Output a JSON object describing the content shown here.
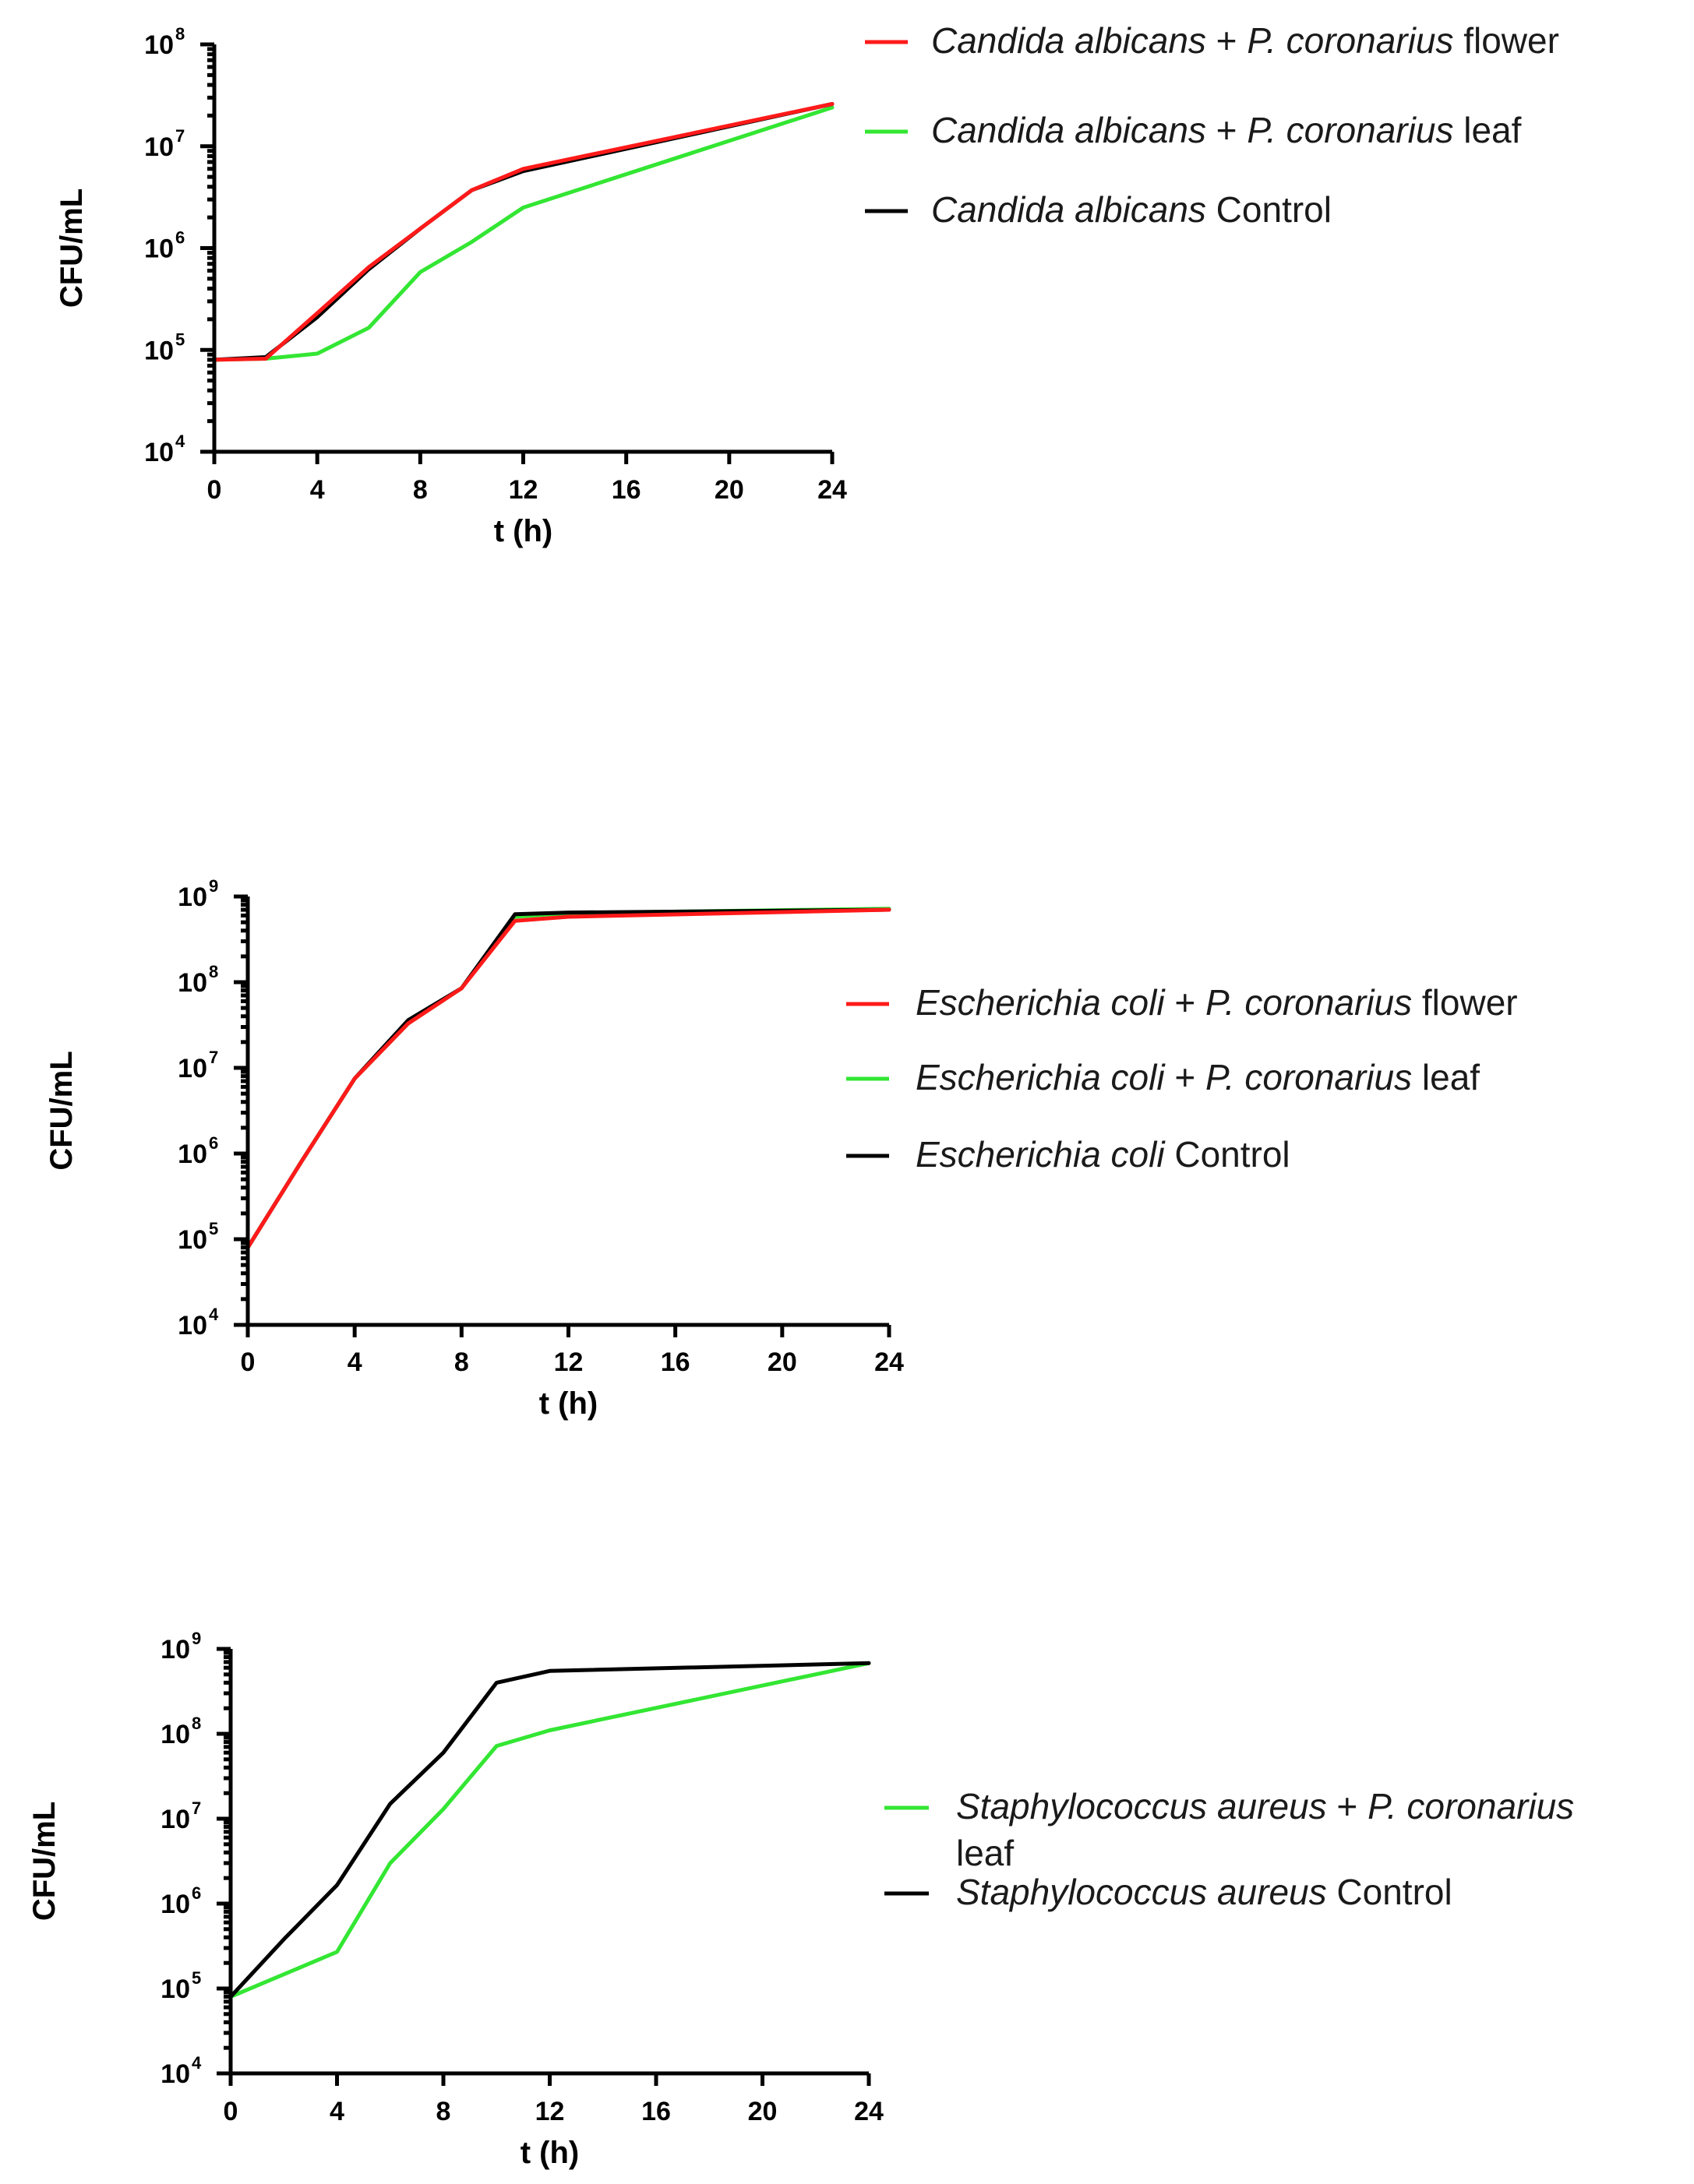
{
  "colors": {
    "flower": "#ff1a1a",
    "leaf": "#33e633",
    "control": "#000000"
  },
  "chart_data": [
    {
      "type": "line",
      "name": "candida",
      "xlabel": "t (h)",
      "ylabel": "CFU/mL",
      "xlim": [
        0,
        24
      ],
      "ylim": [
        10000,
        100000000
      ],
      "yscale": "log",
      "xticks": [
        "0",
        "4",
        "8",
        "12",
        "16",
        "20",
        "24"
      ],
      "yticks": [
        {
          "base": "10",
          "exp": "4"
        },
        {
          "base": "10",
          "exp": "5"
        },
        {
          "base": "10",
          "exp": "6"
        },
        {
          "base": "10",
          "exp": "7"
        },
        {
          "base": "10",
          "exp": "8"
        }
      ],
      "series": [
        {
          "name": "flower",
          "color_key": "flower",
          "legend": [
            {
              "text": "Candida albicans",
              "italic": true
            },
            {
              "text": " + ",
              "italic": false
            },
            {
              "text": "P. coronarius",
              "italic": true
            },
            {
              "text": " flower",
              "italic": false
            }
          ],
          "x": [
            0,
            2,
            4,
            6,
            8,
            10,
            12,
            24
          ],
          "y": [
            80000,
            82000,
            230000,
            650000,
            1550000,
            3700000,
            6000000,
            26000000
          ]
        },
        {
          "name": "leaf",
          "color_key": "leaf",
          "legend": [
            {
              "text": "Candida albicans",
              "italic": true
            },
            {
              "text": " + ",
              "italic": false
            },
            {
              "text": "P. coronarius",
              "italic": true
            },
            {
              "text": " leaf",
              "italic": false
            }
          ],
          "x": [
            0,
            2,
            4,
            6,
            8,
            10,
            12,
            24
          ],
          "y": [
            80000,
            82000,
            92000,
            165000,
            580000,
            1150000,
            2500000,
            24000000
          ]
        },
        {
          "name": "control",
          "color_key": "control",
          "legend": [
            {
              "text": "Candida albicans",
              "italic": true
            },
            {
              "text": " Control",
              "italic": false
            }
          ],
          "x": [
            0,
            2,
            4,
            6,
            8,
            10,
            12,
            24
          ],
          "y": [
            80000,
            85000,
            210000,
            620000,
            1550000,
            3700000,
            5700000,
            26000000
          ]
        }
      ]
    },
    {
      "type": "line",
      "name": "ecoli",
      "xlabel": "t (h)",
      "ylabel": "CFU/mL",
      "xlim": [
        0,
        24
      ],
      "ylim": [
        10000,
        1000000000
      ],
      "yscale": "log",
      "xticks": [
        "0",
        "4",
        "8",
        "12",
        "16",
        "20",
        "24"
      ],
      "yticks": [
        {
          "base": "10",
          "exp": "4"
        },
        {
          "base": "10",
          "exp": "5"
        },
        {
          "base": "10",
          "exp": "6"
        },
        {
          "base": "10",
          "exp": "7"
        },
        {
          "base": "10",
          "exp": "8"
        },
        {
          "base": "10",
          "exp": "9"
        }
      ],
      "series": [
        {
          "name": "flower",
          "color_key": "flower",
          "legend": [
            {
              "text": "Escherichia coli",
              "italic": true
            },
            {
              "text": " + ",
              "italic": false
            },
            {
              "text": "P. coronarius",
              "italic": true
            },
            {
              "text": " flower",
              "italic": false
            }
          ],
          "x": [
            0,
            2,
            4,
            6,
            8,
            10,
            12,
            24
          ],
          "y": [
            80000,
            800000,
            7500000,
            33000000,
            85000000,
            520000000,
            580000000,
            700000000
          ]
        },
        {
          "name": "leaf",
          "color_key": "leaf",
          "legend": [
            {
              "text": "Escherichia coli",
              "italic": true
            },
            {
              "text": " + ",
              "italic": false
            },
            {
              "text": "P. coronarius",
              "italic": true
            },
            {
              "text": " leaf",
              "italic": false
            }
          ],
          "x": [
            0,
            2,
            4,
            6,
            8,
            10,
            12,
            24
          ],
          "y": [
            80000,
            800000,
            7500000,
            33000000,
            85000000,
            580000000,
            640000000,
            720000000
          ]
        },
        {
          "name": "control",
          "color_key": "control",
          "legend": [
            {
              "text": "Escherichia coli",
              "italic": true
            },
            {
              "text": " Control",
              "italic": false
            }
          ],
          "x": [
            0,
            2,
            4,
            6,
            8,
            10,
            12,
            24
          ],
          "y": [
            80000,
            800000,
            7500000,
            36000000,
            85000000,
            620000000,
            650000000,
            700000000
          ]
        }
      ]
    },
    {
      "type": "line",
      "name": "staph",
      "xlabel": "t (h)",
      "ylabel": "CFU/mL",
      "xlim": [
        0,
        24
      ],
      "ylim": [
        10000,
        1000000000
      ],
      "yscale": "log",
      "xticks": [
        "0",
        "4",
        "8",
        "12",
        "16",
        "20",
        "24"
      ],
      "yticks": [
        {
          "base": "10",
          "exp": "4"
        },
        {
          "base": "10",
          "exp": "5"
        },
        {
          "base": "10",
          "exp": "6"
        },
        {
          "base": "10",
          "exp": "7"
        },
        {
          "base": "10",
          "exp": "8"
        },
        {
          "base": "10",
          "exp": "9"
        }
      ],
      "series": [
        {
          "name": "leaf",
          "color_key": "leaf",
          "legend": [
            {
              "text": "Staphylococcus aureus",
              "italic": true
            },
            {
              "text": " + ",
              "italic": false
            },
            {
              "text": "P. coronarius",
              "italic": true
            }
          ],
          "legend2": [
            {
              "text": "leaf",
              "italic": false
            }
          ],
          "x": [
            0,
            4,
            6,
            8,
            10,
            12,
            24
          ],
          "y": [
            80000,
            270000,
            3000000,
            13000000,
            72000000,
            110000000,
            680000000
          ]
        },
        {
          "name": "control",
          "color_key": "control",
          "legend": [
            {
              "text": "Staphylococcus aureus",
              "italic": true
            },
            {
              "text": " Control",
              "italic": false
            }
          ],
          "x": [
            0,
            2,
            4,
            6,
            8,
            10,
            12,
            24
          ],
          "y": [
            80000,
            380000,
            1650000,
            15000000,
            60000000,
            400000000,
            550000000,
            680000000
          ]
        }
      ]
    }
  ]
}
